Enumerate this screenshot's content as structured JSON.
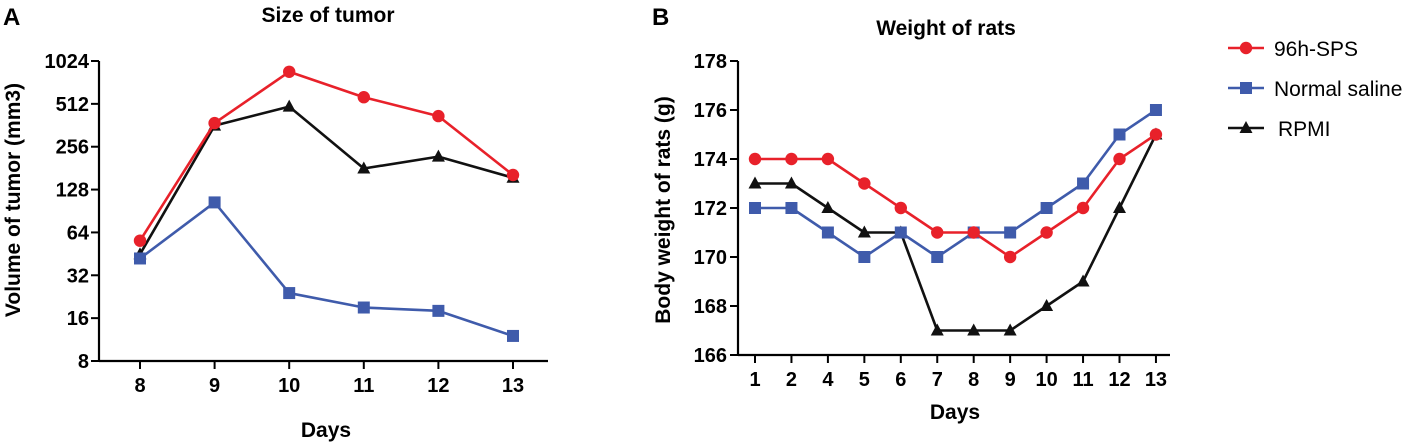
{
  "panels": {
    "a_label": "A",
    "b_label": "B"
  },
  "colors": {
    "red": "#e8212a",
    "blue": "#3f5bab",
    "black": "#111111"
  },
  "legend": {
    "placement": "top-right",
    "items": [
      {
        "name": "96h-SPS",
        "marker": "circle",
        "color": "#e8212a"
      },
      {
        "name": "Normal saline",
        "marker": "square",
        "color": "#3f5bab"
      },
      {
        "name": "RPMI",
        "marker": "triangle",
        "color": "#111111"
      }
    ]
  },
  "chart_data": [
    {
      "type": "line",
      "title": "Size of tumor",
      "xlabel": "Days",
      "ylabel": "Volume of tumor (mm3)",
      "yscale": "log2",
      "ylim": [
        8,
        1024
      ],
      "yticks": [
        8,
        16,
        32,
        64,
        128,
        256,
        512,
        1024
      ],
      "categories": [
        "8",
        "9",
        "10",
        "11",
        "12",
        "13"
      ],
      "series": [
        {
          "name": "96h-SPS",
          "values": [
            56,
            375,
            860,
            570,
            420,
            162
          ]
        },
        {
          "name": "Normal saline",
          "values": [
            42,
            104,
            24,
            19,
            18,
            12
          ]
        },
        {
          "name": "RPMI",
          "values": [
            45,
            360,
            490,
            180,
            218,
            155
          ]
        }
      ]
    },
    {
      "type": "line",
      "title": "Weight of rats",
      "xlabel": "Days",
      "ylabel": "Body weight of rats (g)",
      "ylim": [
        166,
        178
      ],
      "yticks": [
        166,
        168,
        170,
        172,
        174,
        176,
        178
      ],
      "categories": [
        "1",
        "2",
        "4",
        "5",
        "6",
        "7",
        "8",
        "9",
        "10",
        "11",
        "12",
        "13"
      ],
      "series": [
        {
          "name": "96h-SPS",
          "values": [
            174,
            174,
            174,
            173,
            172,
            171,
            171,
            170,
            171,
            172,
            174,
            175
          ]
        },
        {
          "name": "Normal saline",
          "values": [
            172,
            172,
            171,
            170,
            171,
            170,
            171,
            171,
            172,
            173,
            175,
            176
          ]
        },
        {
          "name": "RPMI",
          "values": [
            173,
            173,
            172,
            171,
            171,
            167,
            167,
            167,
            168,
            169,
            172,
            175
          ]
        }
      ]
    }
  ]
}
